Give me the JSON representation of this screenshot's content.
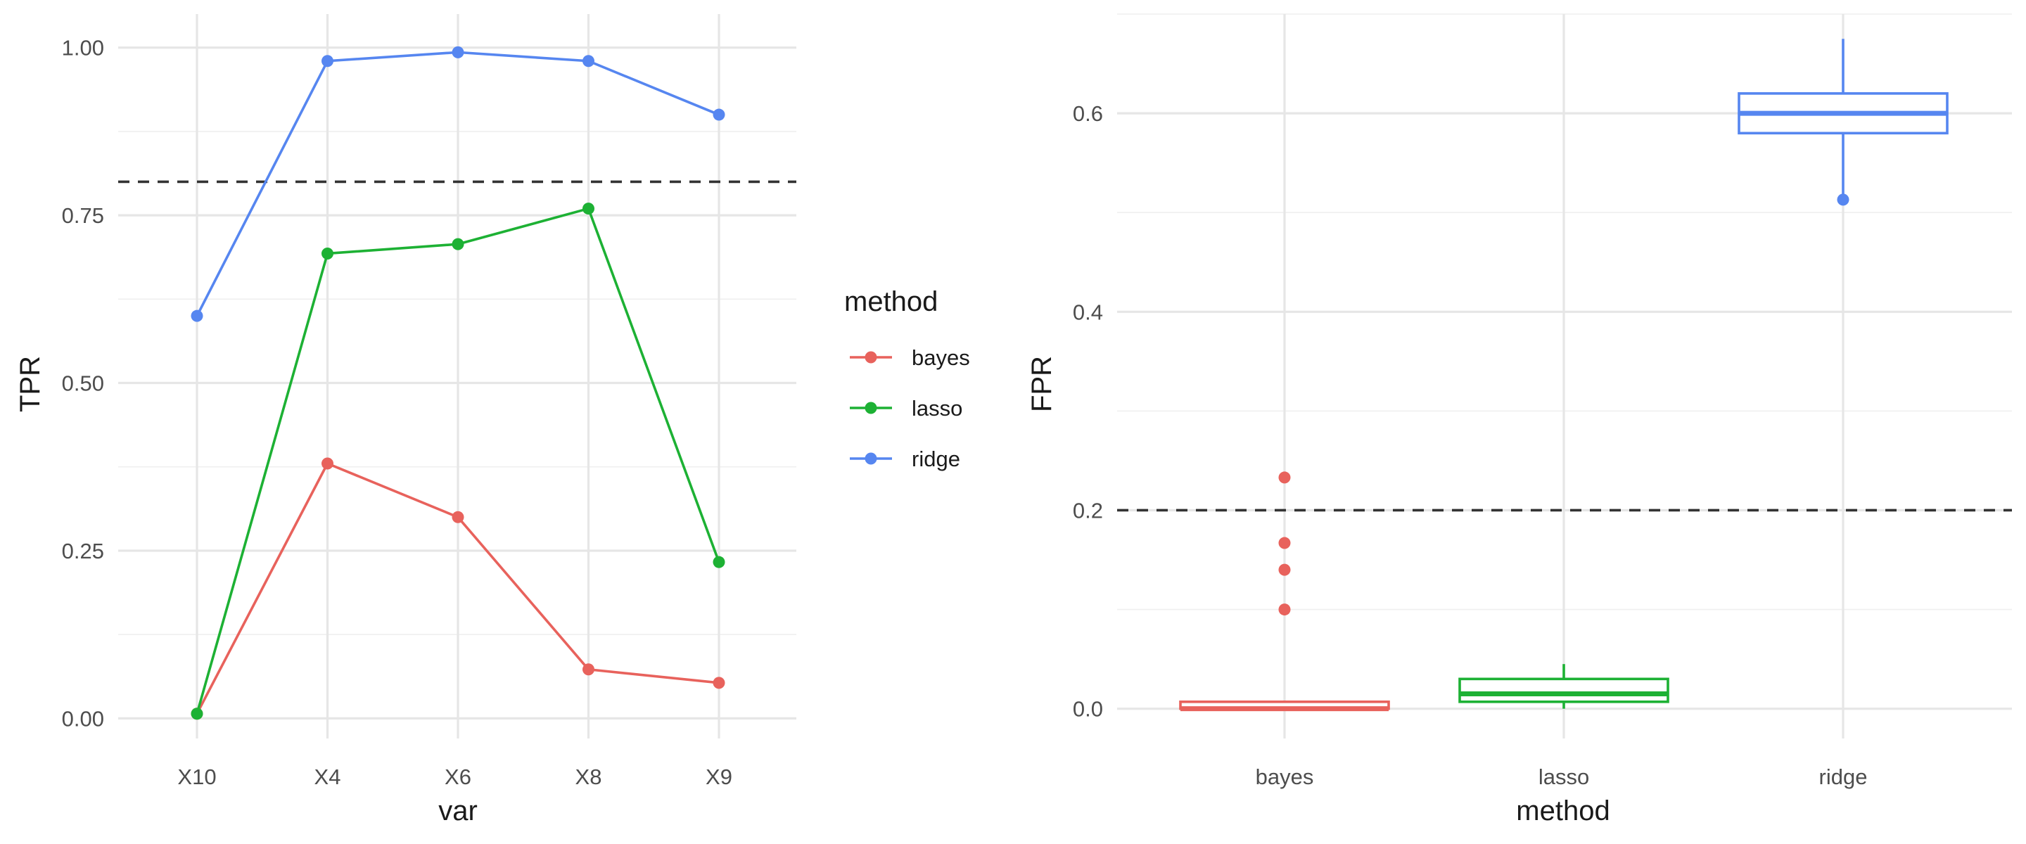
{
  "colors": {
    "bayes": "#E8625C",
    "lasso": "#1DB134",
    "ridge": "#5686F0"
  },
  "legend": {
    "title": "method",
    "items": [
      {
        "label": "bayes",
        "color": "#E8625C"
      },
      {
        "label": "lasso",
        "color": "#1DB134"
      },
      {
        "label": "ridge",
        "color": "#5686F0"
      }
    ]
  },
  "chart_data": [
    {
      "type": "line",
      "xlabel": "var",
      "ylabel": "TPR",
      "categories": [
        "X10",
        "X4",
        "X6",
        "X8",
        "X9"
      ],
      "ylim": [
        -0.03,
        1.05
      ],
      "yticks": [
        0.0,
        0.25,
        0.5,
        0.75,
        1.0
      ],
      "ytick_labels": [
        "0.00",
        "0.25",
        "0.50",
        "0.75",
        "1.00"
      ],
      "reference_line": 0.8,
      "grid": true,
      "series": [
        {
          "name": "bayes",
          "color": "#E8625C",
          "values": [
            0.007,
            0.38,
            0.3,
            0.073,
            0.053
          ]
        },
        {
          "name": "lasso",
          "color": "#1DB134",
          "values": [
            0.007,
            0.693,
            0.707,
            0.76,
            0.233
          ]
        },
        {
          "name": "ridge",
          "color": "#5686F0",
          "values": [
            0.6,
            0.98,
            0.993,
            0.98,
            0.9
          ]
        }
      ]
    },
    {
      "type": "box",
      "xlabel": "method",
      "ylabel": "FPR",
      "categories": [
        "bayes",
        "lasso",
        "ridge"
      ],
      "ylim": [
        -0.03,
        0.7
      ],
      "yticks": [
        0.0,
        0.2,
        0.4,
        0.6
      ],
      "ytick_labels": [
        "0.0",
        "0.2",
        "0.4",
        "0.6"
      ],
      "reference_line": 0.2,
      "grid": true,
      "boxes": [
        {
          "name": "bayes",
          "color": "#E8625C",
          "min": 0.0,
          "q1": 0.0,
          "median": 0.0,
          "q3": 0.007,
          "max": 0.007,
          "outliers": [
            0.1,
            0.14,
            0.167,
            0.233
          ]
        },
        {
          "name": "lasso",
          "color": "#1DB134",
          "min": 0.0,
          "q1": 0.007,
          "median": 0.015,
          "q3": 0.03,
          "max": 0.045,
          "outliers": []
        },
        {
          "name": "ridge",
          "color": "#5686F0",
          "min": 0.515,
          "q1": 0.58,
          "median": 0.6,
          "q3": 0.62,
          "max": 0.675,
          "outliers": [
            0.513
          ]
        }
      ]
    }
  ]
}
